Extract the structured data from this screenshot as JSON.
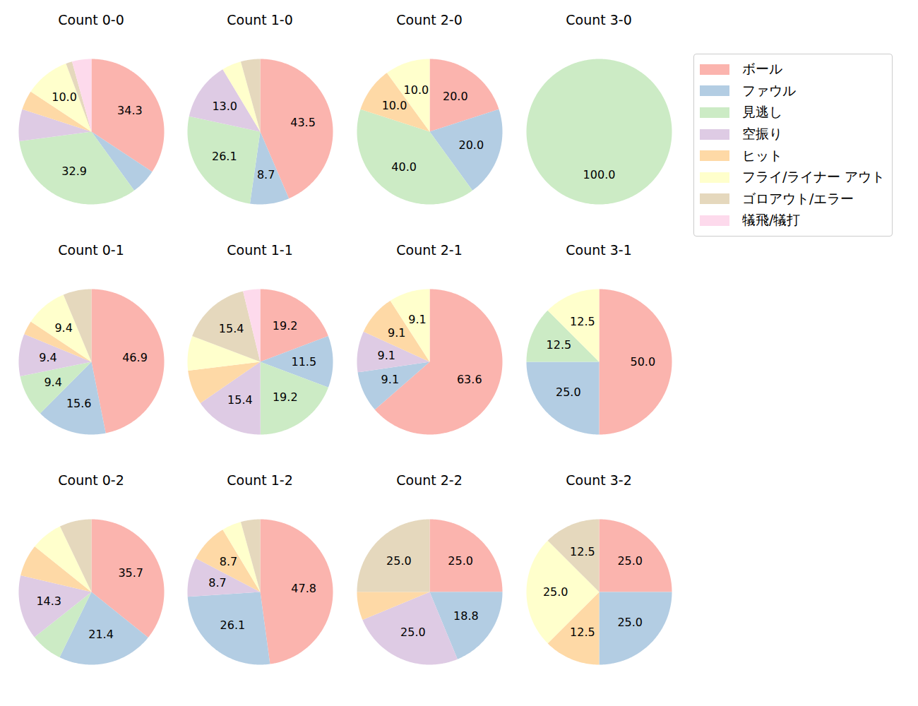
{
  "chart_data": [
    {
      "type": "pie",
      "title": "Count 0-0",
      "categories": [
        "ボール",
        "ファウル",
        "見逃し",
        "空振り",
        "ヒット",
        "フライ/ライナー アウト",
        "ゴロアウト/エラー",
        "犠飛/犠打"
      ],
      "values": [
        34.3,
        5.7,
        32.9,
        7.1,
        4.3,
        10.0,
        1.4,
        4.3
      ],
      "value_labels": [
        "34.3",
        null,
        "32.9",
        null,
        null,
        "10.0",
        null,
        null
      ],
      "data_labels": true,
      "colors": [
        "#fbb4ae",
        "#b3cde3",
        "#ccebc5",
        "#decbe4",
        "#fed9a6",
        "#ffffcc",
        "#e5d8bd",
        "#fddaec"
      ]
    },
    {
      "type": "pie",
      "title": "Count 1-0",
      "categories": [
        "ボール",
        "ファウル",
        "見逃し",
        "空振り",
        "ヒット",
        "フライ/ライナー アウト",
        "ゴロアウト/エラー",
        "犠飛/犠打"
      ],
      "values": [
        43.5,
        8.7,
        26.1,
        13.0,
        0,
        4.3,
        4.3,
        0
      ],
      "value_labels": [
        "43.5",
        "8.7",
        "26.1",
        "13.0",
        null,
        null,
        null,
        null
      ],
      "data_labels": true,
      "colors": [
        "#fbb4ae",
        "#b3cde3",
        "#ccebc5",
        "#decbe4",
        "#fed9a6",
        "#ffffcc",
        "#e5d8bd",
        "#fddaec"
      ]
    },
    {
      "type": "pie",
      "title": "Count 2-0",
      "categories": [
        "ボール",
        "ファウル",
        "見逃し",
        "空振り",
        "ヒット",
        "フライ/ライナー アウト",
        "ゴロアウト/エラー",
        "犠飛/犠打"
      ],
      "values": [
        20.0,
        20.0,
        40.0,
        0,
        10.0,
        10.0,
        0,
        0
      ],
      "value_labels": [
        "20.0",
        "20.0",
        "40.0",
        null,
        "10.0",
        "10.0",
        null,
        null
      ],
      "data_labels": true,
      "colors": [
        "#fbb4ae",
        "#b3cde3",
        "#ccebc5",
        "#decbe4",
        "#fed9a6",
        "#ffffcc",
        "#e5d8bd",
        "#fddaec"
      ]
    },
    {
      "type": "pie",
      "title": "Count 3-0",
      "categories": [
        "ボール",
        "ファウル",
        "見逃し",
        "空振り",
        "ヒット",
        "フライ/ライナー アウト",
        "ゴロアウト/エラー",
        "犠飛/犠打"
      ],
      "values": [
        0,
        0,
        100.0,
        0,
        0,
        0,
        0,
        0
      ],
      "value_labels": [
        null,
        null,
        "100.0",
        null,
        null,
        null,
        null,
        null
      ],
      "data_labels": true,
      "legend": "outside right",
      "colors": [
        "#fbb4ae",
        "#b3cde3",
        "#ccebc5",
        "#decbe4",
        "#fed9a6",
        "#ffffcc",
        "#e5d8bd",
        "#fddaec"
      ]
    },
    {
      "type": "pie",
      "title": "Count 0-1",
      "categories": [
        "ボール",
        "ファウル",
        "見逃し",
        "空振り",
        "ヒット",
        "フライ/ライナー アウト",
        "ゴロアウト/エラー",
        "犠飛/犠打"
      ],
      "values": [
        46.9,
        15.6,
        9.4,
        9.4,
        3.1,
        9.4,
        6.3,
        0
      ],
      "value_labels": [
        "46.9",
        "15.6",
        "9.4",
        "9.4",
        null,
        "9.4",
        null,
        null
      ],
      "data_labels": true,
      "colors": [
        "#fbb4ae",
        "#b3cde3",
        "#ccebc5",
        "#decbe4",
        "#fed9a6",
        "#ffffcc",
        "#e5d8bd",
        "#fddaec"
      ]
    },
    {
      "type": "pie",
      "title": "Count 1-1",
      "categories": [
        "ボール",
        "ファウル",
        "見逃し",
        "空振り",
        "ヒット",
        "フライ/ライナー アウト",
        "ゴロアウト/エラー",
        "犠飛/犠打"
      ],
      "values": [
        19.2,
        11.5,
        19.2,
        15.4,
        7.7,
        7.7,
        15.4,
        3.8
      ],
      "value_labels": [
        "19.2",
        "11.5",
        "19.2",
        "15.4",
        null,
        null,
        "15.4",
        null
      ],
      "data_labels": true,
      "colors": [
        "#fbb4ae",
        "#b3cde3",
        "#ccebc5",
        "#decbe4",
        "#fed9a6",
        "#ffffcc",
        "#e5d8bd",
        "#fddaec"
      ]
    },
    {
      "type": "pie",
      "title": "Count 2-1",
      "categories": [
        "ボール",
        "ファウル",
        "見逃し",
        "空振り",
        "ヒット",
        "フライ/ライナー アウト",
        "ゴロアウト/エラー",
        "犠飛/犠打"
      ],
      "values": [
        63.6,
        9.1,
        0,
        9.1,
        9.1,
        9.1,
        0,
        0
      ],
      "value_labels": [
        "63.6",
        "9.1",
        null,
        "9.1",
        "9.1",
        "9.1",
        null,
        null
      ],
      "data_labels": true,
      "colors": [
        "#fbb4ae",
        "#b3cde3",
        "#ccebc5",
        "#decbe4",
        "#fed9a6",
        "#ffffcc",
        "#e5d8bd",
        "#fddaec"
      ]
    },
    {
      "type": "pie",
      "title": "Count 3-1",
      "categories": [
        "ボール",
        "ファウル",
        "見逃し",
        "空振り",
        "ヒット",
        "フライ/ライナー アウト",
        "ゴロアウト/エラー",
        "犠飛/犠打"
      ],
      "values": [
        50.0,
        25.0,
        12.5,
        0,
        0,
        12.5,
        0,
        0
      ],
      "value_labels": [
        "50.0",
        "25.0",
        "12.5",
        null,
        null,
        "12.5",
        null,
        null
      ],
      "data_labels": true,
      "colors": [
        "#fbb4ae",
        "#b3cde3",
        "#ccebc5",
        "#decbe4",
        "#fed9a6",
        "#ffffcc",
        "#e5d8bd",
        "#fddaec"
      ]
    },
    {
      "type": "pie",
      "title": "Count 0-2",
      "categories": [
        "ボール",
        "ファウル",
        "見逃し",
        "空振り",
        "ヒット",
        "フライ/ライナー アウト",
        "ゴロアウト/エラー",
        "犠飛/犠打"
      ],
      "values": [
        35.7,
        21.4,
        7.1,
        14.3,
        7.1,
        7.1,
        7.1,
        0
      ],
      "value_labels": [
        "35.7",
        "21.4",
        null,
        "14.3",
        null,
        null,
        null,
        null
      ],
      "data_labels": true,
      "colors": [
        "#fbb4ae",
        "#b3cde3",
        "#ccebc5",
        "#decbe4",
        "#fed9a6",
        "#ffffcc",
        "#e5d8bd",
        "#fddaec"
      ]
    },
    {
      "type": "pie",
      "title": "Count 1-2",
      "categories": [
        "ボール",
        "ファウル",
        "見逃し",
        "空振り",
        "ヒット",
        "フライ/ライナー アウト",
        "ゴロアウト/エラー",
        "犠飛/犠打"
      ],
      "values": [
        47.8,
        26.1,
        0,
        8.7,
        8.7,
        4.3,
        4.3,
        0
      ],
      "value_labels": [
        "47.8",
        "26.1",
        null,
        "8.7",
        "8.7",
        null,
        null,
        null
      ],
      "data_labels": true,
      "colors": [
        "#fbb4ae",
        "#b3cde3",
        "#ccebc5",
        "#decbe4",
        "#fed9a6",
        "#ffffcc",
        "#e5d8bd",
        "#fddaec"
      ]
    },
    {
      "type": "pie",
      "title": "Count 2-2",
      "categories": [
        "ボール",
        "ファウル",
        "見逃し",
        "空振り",
        "ヒット",
        "フライ/ライナー アウト",
        "ゴロアウト/エラー",
        "犠飛/犠打"
      ],
      "values": [
        25.0,
        18.8,
        0,
        25.0,
        6.3,
        0,
        25.0,
        0
      ],
      "value_labels": [
        "25.0",
        "18.8",
        null,
        "25.0",
        null,
        null,
        "25.0",
        null
      ],
      "data_labels": true,
      "colors": [
        "#fbb4ae",
        "#b3cde3",
        "#ccebc5",
        "#decbe4",
        "#fed9a6",
        "#ffffcc",
        "#e5d8bd",
        "#fddaec"
      ]
    },
    {
      "type": "pie",
      "title": "Count 3-2",
      "categories": [
        "ボール",
        "ファウル",
        "見逃し",
        "空振り",
        "ヒット",
        "フライ/ライナー アウト",
        "ゴロアウト/エラー",
        "犠飛/犠打"
      ],
      "values": [
        25.0,
        25.0,
        0,
        0,
        12.5,
        25.0,
        12.5,
        0
      ],
      "value_labels": [
        "25.0",
        "25.0",
        null,
        null,
        "12.5",
        "25.0",
        "12.5",
        null
      ],
      "data_labels": true,
      "colors": [
        "#fbb4ae",
        "#b3cde3",
        "#ccebc5",
        "#decbe4",
        "#fed9a6",
        "#ffffcc",
        "#e5d8bd",
        "#fddaec"
      ]
    }
  ]
}
